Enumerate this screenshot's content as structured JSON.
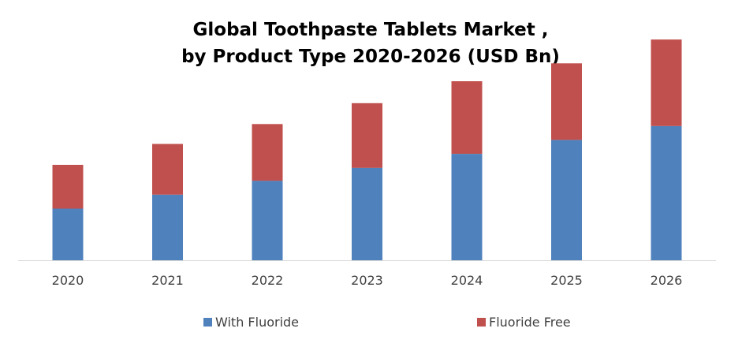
{
  "chart_data": {
    "type": "bar",
    "stacked": true,
    "title": "Global Toothpaste Tablets Market ,",
    "subtitle": "by Product Type 2020-2026 (USD Bn)",
    "xlabel": "",
    "ylabel": "",
    "categories": [
      "2020",
      "2021",
      "2022",
      "2023",
      "2024",
      "2025",
      "2026"
    ],
    "series": [
      {
        "name": "With Fluoride",
        "color": "#4f81bd",
        "values": [
          0.52,
          0.66,
          0.8,
          0.93,
          1.07,
          1.21,
          1.35
        ]
      },
      {
        "name": "Fluoride Free",
        "color": "#c0504d",
        "values": [
          0.44,
          0.51,
          0.57,
          0.65,
          0.73,
          0.77,
          0.87
        ]
      }
    ],
    "ylim": [
      0,
      2.3
    ],
    "grid": false,
    "legend_position": "bottom"
  }
}
